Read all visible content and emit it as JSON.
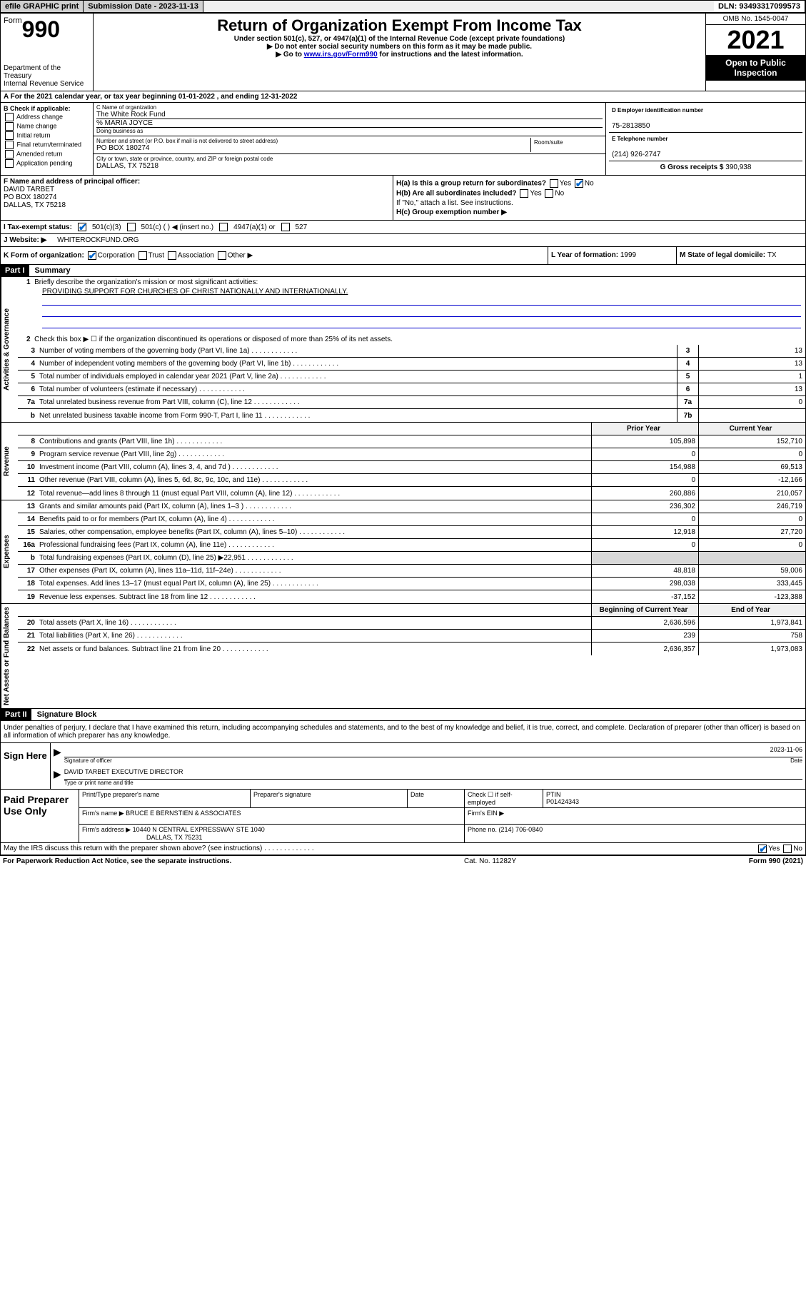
{
  "topbar": {
    "efile": "efile GRAPHIC print",
    "subdate_label": "Submission Date - 2023-11-13",
    "dln": "DLN: 93493317099573"
  },
  "header": {
    "form_prefix": "Form",
    "form_num": "990",
    "dept": "Department of the Treasury\nInternal Revenue Service",
    "title": "Return of Organization Exempt From Income Tax",
    "sub1": "Under section 501(c), 527, or 4947(a)(1) of the Internal Revenue Code (except private foundations)",
    "sub2": "▶ Do not enter social security numbers on this form as it may be made public.",
    "sub3_pre": "▶ Go to ",
    "sub3_link": "www.irs.gov/Form990",
    "sub3_post": " for instructions and the latest information.",
    "omb": "OMB No. 1545-0047",
    "year": "2021",
    "inspect": "Open to Public Inspection"
  },
  "row_a": "For the 2021 calendar year, or tax year beginning 01-01-2022  , and ending 12-31-2022",
  "col_b": {
    "hdr": "B Check if applicable:",
    "items": [
      "Address change",
      "Name change",
      "Initial return",
      "Final return/terminated",
      "Amended return",
      "Application pending"
    ]
  },
  "org": {
    "c_label": "C Name of organization",
    "c_val": "The White Rock Fund",
    "care": "% MARIA JOYCE",
    "dba_label": "Doing business as",
    "addr_label": "Number and street (or P.O. box if mail is not delivered to street address)",
    "room_label": "Room/suite",
    "addr_val": "PO BOX 180274",
    "city_label": "City or town, state or province, country, and ZIP or foreign postal code",
    "city_val": "DALLAS, TX  75218"
  },
  "col_d": {
    "d_label": "D Employer identification number",
    "d_val": "75-2813850",
    "e_label": "E Telephone number",
    "e_val": "(214) 926-2747",
    "g_label": "G Gross receipts $ ",
    "g_val": "390,938"
  },
  "f": {
    "label": "F Name and address of principal officer:",
    "name": "DAVID TARBET",
    "addr1": "PO BOX 180274",
    "addr2": "DALLAS, TX  75218"
  },
  "h": {
    "a": "H(a)  Is this a group return for subordinates?",
    "b": "H(b)  Are all subordinates included?",
    "note": "If \"No,\" attach a list. See instructions.",
    "c": "H(c)  Group exemption number ▶"
  },
  "i": {
    "label": "I  Tax-exempt status:",
    "o1": "501(c)(3)",
    "o2": "501(c) (  ) ◀ (insert no.)",
    "o3": "4947(a)(1) or",
    "o4": "527"
  },
  "j": {
    "label": "J  Website: ▶",
    "val": "WHITEROCKFUND.ORG"
  },
  "k": {
    "label": "K Form of organization:",
    "opts": [
      "Corporation",
      "Trust",
      "Association",
      "Other ▶"
    ],
    "l_label": "L Year of formation: ",
    "l_val": "1999",
    "m_label": "M State of legal domicile: ",
    "m_val": "TX"
  },
  "part1": {
    "hdr": "Part I",
    "title": "Summary",
    "l1": "Briefly describe the organization's mission or most significant activities:",
    "mission": "PROVIDING SUPPORT FOR CHURCHES OF CHRIST NATIONALLY AND INTERNATIONALLY.",
    "l2": "Check this box ▶ ☐  if the organization discontinued its operations or disposed of more than 25% of its net assets.",
    "sections": [
      {
        "label": "Activities & Governance",
        "rows": [
          {
            "n": "3",
            "d": "Number of voting members of the governing body (Part VI, line 1a)",
            "cn": "3",
            "cv": "13"
          },
          {
            "n": "4",
            "d": "Number of independent voting members of the governing body (Part VI, line 1b)",
            "cn": "4",
            "cv": "13"
          },
          {
            "n": "5",
            "d": "Total number of individuals employed in calendar year 2021 (Part V, line 2a)",
            "cn": "5",
            "cv": "1"
          },
          {
            "n": "6",
            "d": "Total number of volunteers (estimate if necessary)",
            "cn": "6",
            "cv": "13"
          },
          {
            "n": "7a",
            "d": "Total unrelated business revenue from Part VIII, column (C), line 12",
            "cn": "7a",
            "cv": "0"
          },
          {
            "n": "b",
            "d": "Net unrelated business taxable income from Form 990-T, Part I, line 11",
            "cn": "7b",
            "cv": ""
          }
        ]
      },
      {
        "label": "Revenue",
        "hdr": [
          "Prior Year",
          "Current Year"
        ],
        "rows": [
          {
            "n": "8",
            "d": "Contributions and grants (Part VIII, line 1h)",
            "p": "105,898",
            "c": "152,710"
          },
          {
            "n": "9",
            "d": "Program service revenue (Part VIII, line 2g)",
            "p": "0",
            "c": "0"
          },
          {
            "n": "10",
            "d": "Investment income (Part VIII, column (A), lines 3, 4, and 7d )",
            "p": "154,988",
            "c": "69,513"
          },
          {
            "n": "11",
            "d": "Other revenue (Part VIII, column (A), lines 5, 6d, 8c, 9c, 10c, and 11e)",
            "p": "0",
            "c": "-12,166"
          },
          {
            "n": "12",
            "d": "Total revenue—add lines 8 through 11 (must equal Part VIII, column (A), line 12)",
            "p": "260,886",
            "c": "210,057"
          }
        ]
      },
      {
        "label": "Expenses",
        "rows": [
          {
            "n": "13",
            "d": "Grants and similar amounts paid (Part IX, column (A), lines 1–3 )",
            "p": "236,302",
            "c": "246,719"
          },
          {
            "n": "14",
            "d": "Benefits paid to or for members (Part IX, column (A), line 4)",
            "p": "0",
            "c": "0"
          },
          {
            "n": "15",
            "d": "Salaries, other compensation, employee benefits (Part IX, column (A), lines 5–10)",
            "p": "12,918",
            "c": "27,720"
          },
          {
            "n": "16a",
            "d": "Professional fundraising fees (Part IX, column (A), line 11e)",
            "p": "0",
            "c": "0"
          },
          {
            "n": "b",
            "d": "Total fundraising expenses (Part IX, column (D), line 25) ▶22,951",
            "p": "gray",
            "c": "gray"
          },
          {
            "n": "17",
            "d": "Other expenses (Part IX, column (A), lines 11a–11d, 11f–24e)",
            "p": "48,818",
            "c": "59,006"
          },
          {
            "n": "18",
            "d": "Total expenses. Add lines 13–17 (must equal Part IX, column (A), line 25)",
            "p": "298,038",
            "c": "333,445"
          },
          {
            "n": "19",
            "d": "Revenue less expenses. Subtract line 18 from line 12",
            "p": "-37,152",
            "c": "-123,388"
          }
        ]
      },
      {
        "label": "Net Assets or Fund Balances",
        "hdr": [
          "Beginning of Current Year",
          "End of Year"
        ],
        "rows": [
          {
            "n": "20",
            "d": "Total assets (Part X, line 16)",
            "p": "2,636,596",
            "c": "1,973,841"
          },
          {
            "n": "21",
            "d": "Total liabilities (Part X, line 26)",
            "p": "239",
            "c": "758"
          },
          {
            "n": "22",
            "d": "Net assets or fund balances. Subtract line 21 from line 20",
            "p": "2,636,357",
            "c": "1,973,083"
          }
        ]
      }
    ]
  },
  "part2": {
    "hdr": "Part II",
    "title": "Signature Block",
    "decl": "Under penalties of perjury, I declare that I have examined this return, including accompanying schedules and statements, and to the best of my knowledge and belief, it is true, correct, and complete. Declaration of preparer (other than officer) is based on all information of which preparer has any knowledge."
  },
  "sign": {
    "label": "Sign Here",
    "date": "2023-11-06",
    "sig_of": "Signature of officer",
    "date_l": "Date",
    "name": "DAVID TARBET  EXECUTIVE DIRECTOR",
    "type_l": "Type or print name and title"
  },
  "prep": {
    "label": "Paid Preparer Use Only",
    "h1": "Print/Type preparer's name",
    "h2": "Preparer's signature",
    "h3": "Date",
    "h4_1": "Check ☐ if self-employed",
    "h5": "PTIN",
    "ptin": "P01424343",
    "firm_l": "Firm's name    ▶",
    "firm": "BRUCE E BERNSTIEN & ASSOCIATES",
    "ein_l": "Firm's EIN ▶",
    "addr_l": "Firm's address ▶",
    "addr": "10440 N CENTRAL EXPRESSWAY STE 1040",
    "city": "DALLAS, TX  75231",
    "phone_l": "Phone no. ",
    "phone": "(214) 706-0840"
  },
  "discuss": "May the IRS discuss this return with the preparer shown above? (see instructions)",
  "footer": {
    "l": "For Paperwork Reduction Act Notice, see the separate instructions.",
    "c": "Cat. No. 11282Y",
    "r": "Form 990 (2021)"
  }
}
